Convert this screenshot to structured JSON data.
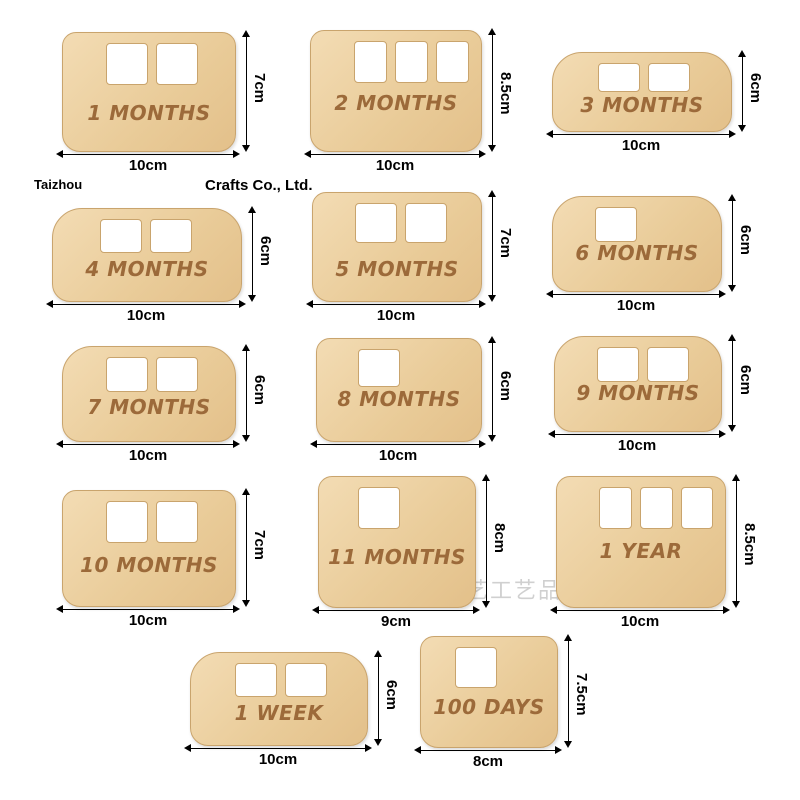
{
  "watermark": {
    "company_left": "Taizhou",
    "company_right": "Crafts Co., Ltd.",
    "company_cn": "台州市千艺工艺品有限公司"
  },
  "colors": {
    "wood": "#e9cb98",
    "engraving": "#9c6a3a"
  },
  "cards": [
    {
      "text": "1 MONTHS",
      "width": "10cm",
      "height": "7cm"
    },
    {
      "text": "2 MONTHS",
      "width": "10cm",
      "height": "8.5cm"
    },
    {
      "text": "3 MONTHS",
      "width": "10cm",
      "height": "6cm"
    },
    {
      "text": "4 MONTHS",
      "width": "10cm",
      "height": "6cm"
    },
    {
      "text": "5 MONTHS",
      "width": "10cm",
      "height": "7cm"
    },
    {
      "text": "6 MONTHS",
      "width": "10cm",
      "height": "6cm"
    },
    {
      "text": "7 MONTHS",
      "width": "10cm",
      "height": "6cm"
    },
    {
      "text": "8 MONTHS",
      "width": "10cm",
      "height": "6cm"
    },
    {
      "text": "9 MONTHS",
      "width": "10cm",
      "height": "6cm"
    },
    {
      "text": "10 MONTHS",
      "width": "10cm",
      "height": "7cm"
    },
    {
      "text": "11 MONTHS",
      "width": "9cm",
      "height": "8cm"
    },
    {
      "text": "1 YEAR",
      "width": "10cm",
      "height": "8.5cm"
    },
    {
      "text": "1 WEEK",
      "width": "10cm",
      "height": "6cm"
    },
    {
      "text": "100 DAYS",
      "width": "8cm",
      "height": "7.5cm"
    }
  ]
}
